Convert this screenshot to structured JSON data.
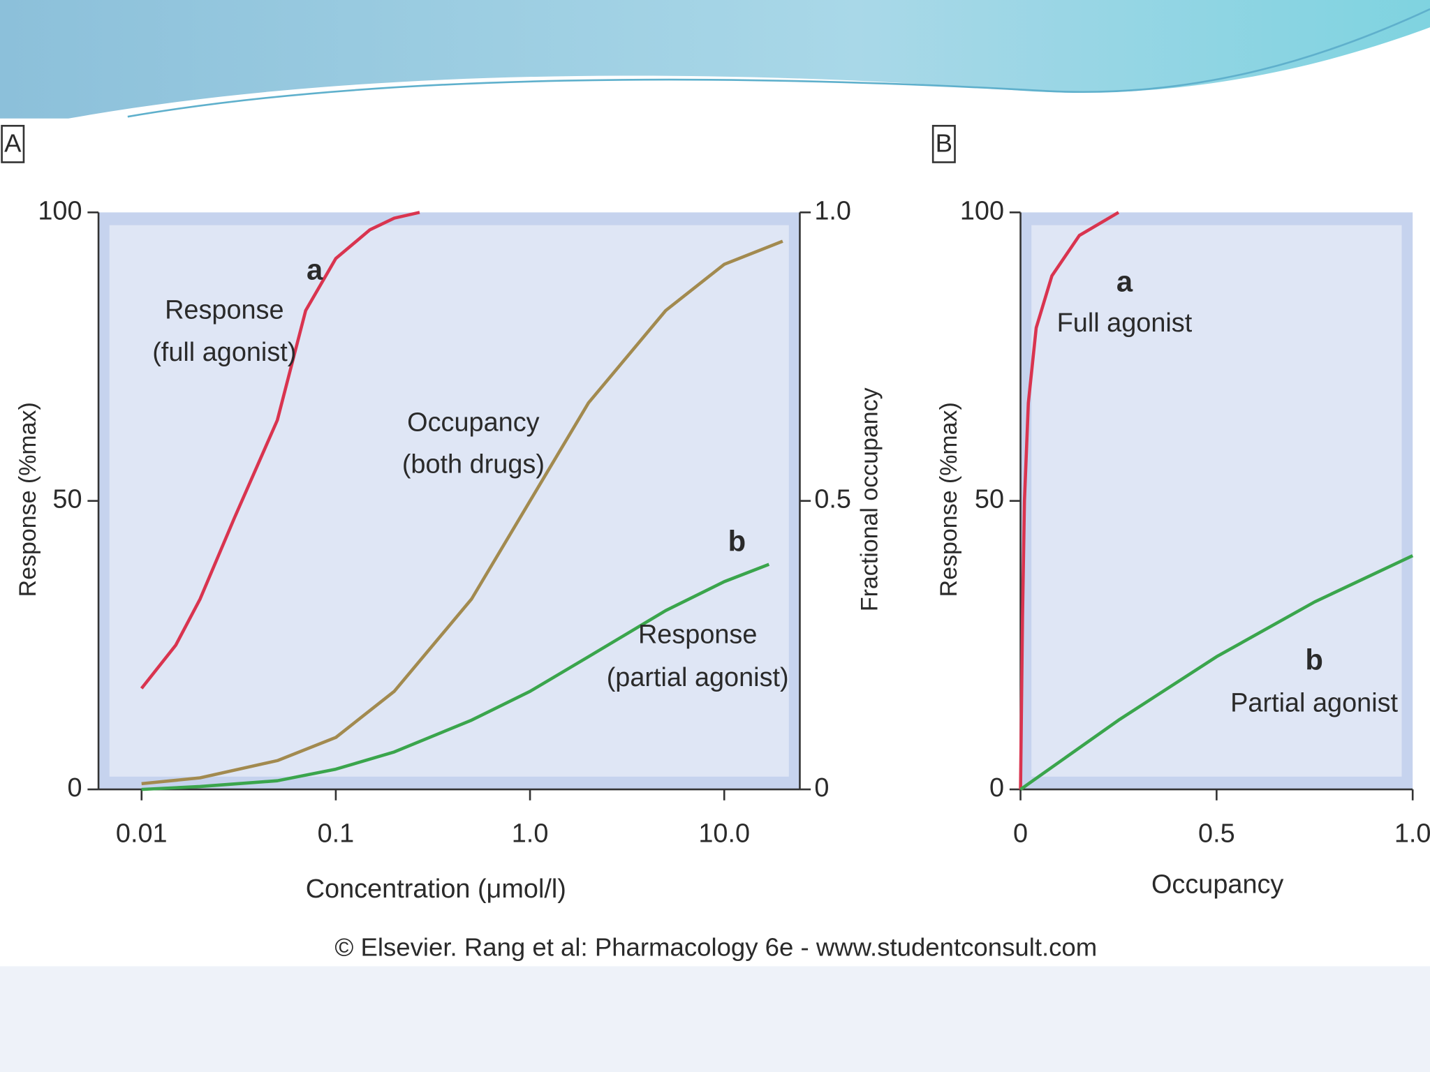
{
  "footer": "© Elsevier. Rang et al: Pharmacology 6e - www.studentconsult.com",
  "chart_data": [
    {
      "type": "line",
      "panel": "A",
      "xscale": "log",
      "x_label": "Concentration (μmol/l)",
      "y_label": "Response (%max)",
      "y2_label": "Fractional occupancy",
      "xlim": [
        0.006,
        24.5
      ],
      "xticks": [
        0.01,
        0.1,
        {
          "value": 1,
          "label": "1.0"
        },
        {
          "value": 10,
          "label": "10.0"
        }
      ],
      "ylim": [
        0,
        100
      ],
      "yticks": [
        0,
        50,
        100
      ],
      "y2lim": [
        0,
        1
      ],
      "y2ticks": [
        0,
        0.5,
        {
          "value": 1,
          "label": "1.0"
        }
      ],
      "series": [
        {
          "color": "#d9344f",
          "x": [
            0.01,
            0.015,
            0.02,
            0.03,
            0.05,
            0.07,
            0.1,
            0.15,
            0.2,
            0.27
          ],
          "values": [
            17.5,
            25,
            33,
            47,
            64,
            83,
            92,
            97,
            99,
            100
          ]
        },
        {
          "color": "#a28a4f",
          "axis": "y2",
          "x": [
            0.01,
            0.02,
            0.05,
            0.1,
            0.2,
            0.5,
            1,
            2,
            5,
            10,
            20
          ],
          "values": [
            0.01,
            0.02,
            0.05,
            0.09,
            0.17,
            0.33,
            0.5,
            0.67,
            0.83,
            0.91,
            0.95
          ]
        },
        {
          "color": "#3aa54c",
          "x": [
            0.01,
            0.02,
            0.05,
            0.1,
            0.2,
            0.5,
            1,
            2,
            5,
            10,
            17
          ],
          "values": [
            0,
            0.5,
            1.5,
            3.5,
            6.5,
            12,
            17,
            23,
            31,
            36,
            39
          ]
        }
      ],
      "annotations": [
        [
          "a"
        ],
        [
          "Response",
          "(full agonist)"
        ],
        [
          "Occupancy",
          "(both drugs)"
        ],
        [
          "b"
        ],
        [
          "Response",
          "(partial agonist)"
        ]
      ]
    },
    {
      "type": "line",
      "panel": "B",
      "x_label": "Occupancy",
      "y_label": "Response (%max)",
      "xlim": [
        0,
        1
      ],
      "xticks": [
        0,
        0.5,
        {
          "value": 1,
          "label": "1.0"
        }
      ],
      "ylim": [
        0,
        100
      ],
      "yticks": [
        0,
        50,
        100
      ],
      "series": [
        {
          "color": "#d9344f",
          "x": [
            0,
            0.005,
            0.01,
            0.02,
            0.04,
            0.08,
            0.15,
            0.25
          ],
          "values": [
            0,
            30,
            50,
            67,
            80,
            89,
            96,
            100
          ]
        },
        {
          "color": "#3aa54c",
          "x": [
            0,
            0.25,
            0.5,
            0.75,
            1
          ],
          "values": [
            0,
            12,
            23,
            32.5,
            40.5
          ]
        }
      ],
      "annotations": [
        [
          "a"
        ],
        [
          "Full agonist"
        ],
        [
          "b"
        ],
        [
          "Partial agonist"
        ]
      ]
    }
  ]
}
